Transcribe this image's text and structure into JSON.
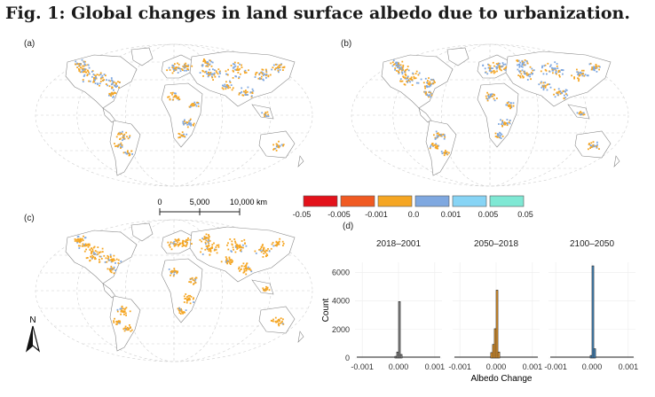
{
  "figure": {
    "title": "Fig. 1: Global changes in land surface albedo due to urbanization.",
    "panels": [
      "(a)",
      "(b)",
      "(c)",
      "(d)"
    ]
  },
  "scale_bar": {
    "labels": [
      "0",
      "5,000",
      "10,000 km"
    ]
  },
  "legend": {
    "colors": [
      "#e3121b",
      "#f05a22",
      "#f5a623",
      "#7fa8e0",
      "#87d4f5",
      "#7fe8d4"
    ],
    "tick_labels": [
      "-0.05",
      "-0.005",
      "-0.001",
      "0.0",
      "0.001",
      "0.005",
      "0.05"
    ]
  },
  "north_arrow": {
    "label": "N"
  },
  "maps": {
    "a": {
      "dominant": [
        "#f5a623",
        "#7fa8e0"
      ],
      "shares": [
        0.6,
        0.4
      ]
    },
    "b": {
      "dominant": [
        "#f5a623",
        "#7fa8e0"
      ],
      "shares": [
        0.55,
        0.45
      ]
    },
    "c": {
      "dominant": [
        "#f5a623",
        "#7fa8e0"
      ],
      "shares": [
        0.85,
        0.15
      ]
    }
  },
  "chart_data": {
    "type": "bar",
    "ylabel": "Count",
    "xlabel": "Albedo Change",
    "ylim": [
      0,
      6700
    ],
    "yticks": [
      0,
      2000,
      4000,
      6000
    ],
    "xlim": [
      -0.0012,
      0.0012
    ],
    "xtick_labels": [
      "-0.001",
      "0.000",
      "0.001"
    ],
    "xticks": [
      -0.001,
      0.0,
      0.001
    ],
    "facets": [
      {
        "name": "2018–2001",
        "color": "#8c8c8c",
        "bins": [
          -0.0001,
          -5e-05,
          0.0,
          5e-05
        ],
        "values": [
          120,
          420,
          3950,
          250
        ]
      },
      {
        "name": "2050–2018",
        "color": "#f0a030",
        "bins": [
          -0.00015,
          -0.0001,
          -5e-05,
          0.0,
          5e-05
        ],
        "values": [
          380,
          950,
          2050,
          4750,
          420
        ]
      },
      {
        "name": "2100–2050",
        "color": "#4a90c8",
        "bins": [
          -5e-05,
          0.0,
          5e-05
        ],
        "values": [
          180,
          6450,
          650
        ]
      }
    ]
  }
}
